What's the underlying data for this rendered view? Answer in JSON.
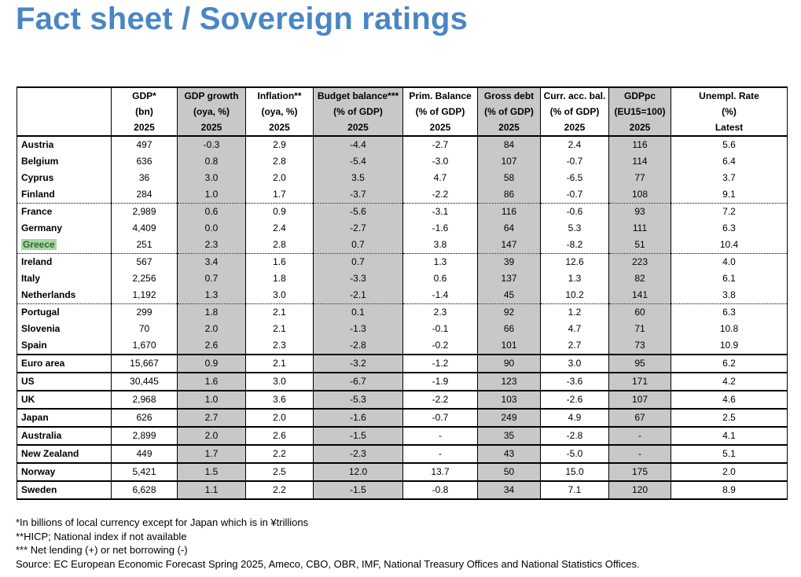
{
  "title": "Fact sheet / Sovereign ratings",
  "table": {
    "header_rows": [
      [
        "",
        "GDP*",
        "GDP growth",
        "Inflation**",
        "Budget balance***",
        "Prim. Balance",
        "Gross debt",
        "Curr. acc. bal.",
        "GDPpc",
        "Unempl. Rate"
      ],
      [
        "",
        "(bn)",
        "(oya, %)",
        "(oya, %)",
        "(% of GDP)",
        "(% of GDP)",
        "(% of GDP)",
        "(% of GDP)",
        "(EU15=100)",
        "(%)"
      ],
      [
        "",
        "2025",
        "2025",
        "2025",
        "2025",
        "2025",
        "2025",
        "2025",
        "2025",
        "Latest"
      ]
    ],
    "rows": [
      {
        "cells": [
          "Austria",
          "497",
          "-0.3",
          "2.9",
          "-4.4",
          "-2.7",
          "84",
          "2.4",
          "116",
          "5.6"
        ]
      },
      {
        "cells": [
          "Belgium",
          "636",
          "0.8",
          "2.8",
          "-5.4",
          "-3.0",
          "107",
          "-0.7",
          "114",
          "6.4"
        ]
      },
      {
        "cells": [
          "Cyprus",
          "36",
          "3.0",
          "2.0",
          "3.5",
          "4.7",
          "58",
          "-6.5",
          "77",
          "3.7"
        ]
      },
      {
        "cells": [
          "Finland",
          "284",
          "1.0",
          "1.7",
          "-3.7",
          "-2.2",
          "86",
          "-0.7",
          "108",
          "9.1"
        ]
      },
      {
        "cells": [
          "France",
          "2,989",
          "0.6",
          "0.9",
          "-5.6",
          "-3.1",
          "116",
          "-0.6",
          "93",
          "7.2"
        ]
      },
      {
        "cells": [
          "Germany",
          "4,409",
          "0.0",
          "2.4",
          "-2.7",
          "-1.6",
          "64",
          "5.3",
          "111",
          "6.3"
        ]
      },
      {
        "cells": [
          "Greece",
          "251",
          "2.3",
          "2.8",
          "0.7",
          "3.8",
          "147",
          "-8.2",
          "51",
          "10.4"
        ]
      },
      {
        "cells": [
          "Ireland",
          "567",
          "3.4",
          "1.6",
          "0.7",
          "1.3",
          "39",
          "12.6",
          "223",
          "4.0"
        ]
      },
      {
        "cells": [
          "Italy",
          "2,256",
          "0.7",
          "1.8",
          "-3.3",
          "0.6",
          "137",
          "1.3",
          "82",
          "6.1"
        ]
      },
      {
        "cells": [
          "Netherlands",
          "1,192",
          "1.3",
          "3.0",
          "-2.1",
          "-1.4",
          "45",
          "10.2",
          "141",
          "3.8"
        ]
      },
      {
        "cells": [
          "Portugal",
          "299",
          "1.8",
          "2.1",
          "0.1",
          "2.3",
          "92",
          "1.2",
          "60",
          "6.3"
        ]
      },
      {
        "cells": [
          "Slovenia",
          "70",
          "2.0",
          "2.1",
          "-1.3",
          "-0.1",
          "66",
          "4.7",
          "71",
          "10.8"
        ]
      },
      {
        "cells": [
          "Spain",
          "1,670",
          "2.6",
          "2.3",
          "-2.8",
          "-0.2",
          "101",
          "2.7",
          "73",
          "10.9"
        ]
      },
      {
        "cells": [
          "Euro area",
          "15,667",
          "0.9",
          "2.1",
          "-3.2",
          "-1.2",
          "90",
          "3.0",
          "95",
          "6.2"
        ]
      },
      {
        "cells": [
          "US",
          "30,445",
          "1.6",
          "3.0",
          "-6.7",
          "-1.9",
          "123",
          "-3.6",
          "171",
          "4.2"
        ]
      },
      {
        "cells": [
          "UK",
          "2,968",
          "1.0",
          "3.6",
          "-5.3",
          "-2.2",
          "103",
          "-2.6",
          "107",
          "4.6"
        ]
      },
      {
        "cells": [
          "Japan",
          "626",
          "2.7",
          "2.0",
          "-1.6",
          "-0.7",
          "249",
          "4.9",
          "67",
          "2.5"
        ]
      },
      {
        "cells": [
          "Australia",
          "2,899",
          "2.0",
          "2.6",
          "-1.5",
          "-",
          "35",
          "-2.8",
          "-",
          "4.1"
        ]
      },
      {
        "cells": [
          "New Zealand",
          "449",
          "1.7",
          "2.2",
          "-2.3",
          "-",
          "43",
          "-5.0",
          "-",
          "5.1"
        ]
      },
      {
        "cells": [
          "Norway",
          "5,421",
          "1.5",
          "2.5",
          "12.0",
          "13.7",
          "50",
          "15.0",
          "175",
          "2.0"
        ]
      },
      {
        "cells": [
          "Sweden",
          "6,628",
          "1.1",
          "2.2",
          "-1.5",
          "-0.8",
          "34",
          "7.1",
          "120",
          "8.9"
        ]
      }
    ],
    "highlighted_country": "Greece",
    "highlight_color": "#a8d5a4",
    "shade_color": "#c8c8c8"
  },
  "notes": [
    "*In billions of local currency except for Japan which is in ¥trillions",
    "**HICP; National index if not available",
    "*** Net lending (+) or net borrowing (-)",
    "Source: EC European Economic Forecast Spring 2025, Ameco, CBO, OBR, IMF, National Treasury Offices and National Statistics Offices."
  ]
}
